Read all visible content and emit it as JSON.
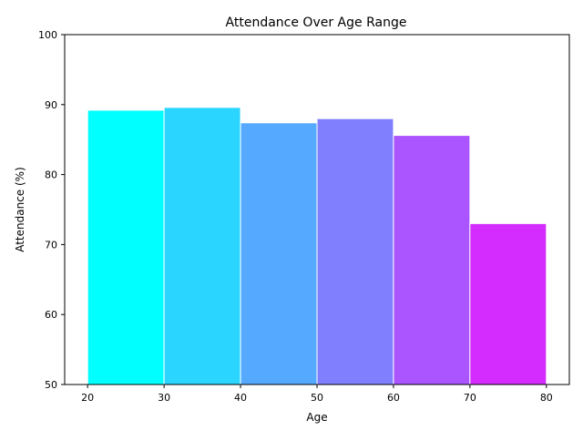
{
  "chart_data": {
    "type": "bar",
    "title": "Attendance Over Age Range",
    "xlabel": "Age",
    "ylabel": "Attendance (%)",
    "bins": [
      {
        "start": 20,
        "end": 30,
        "value": 89.2,
        "color": "#00ffff"
      },
      {
        "start": 30,
        "end": 40,
        "value": 89.6,
        "color": "#2ad5ff"
      },
      {
        "start": 40,
        "end": 50,
        "value": 87.4,
        "color": "#55aaff"
      },
      {
        "start": 50,
        "end": 60,
        "value": 88.0,
        "color": "#8080ff"
      },
      {
        "start": 60,
        "end": 70,
        "value": 85.6,
        "color": "#aa55ff"
      },
      {
        "start": 70,
        "end": 80,
        "value": 73.0,
        "color": "#d42bff"
      }
    ],
    "xlim": [
      17,
      83
    ],
    "ylim": [
      50,
      100
    ],
    "xticks": [
      20,
      30,
      40,
      50,
      60,
      70,
      80
    ],
    "yticks": [
      50,
      60,
      70,
      80,
      90,
      100
    ],
    "bar_edge_color": "#ffffff",
    "grid": false,
    "legend": "none"
  }
}
